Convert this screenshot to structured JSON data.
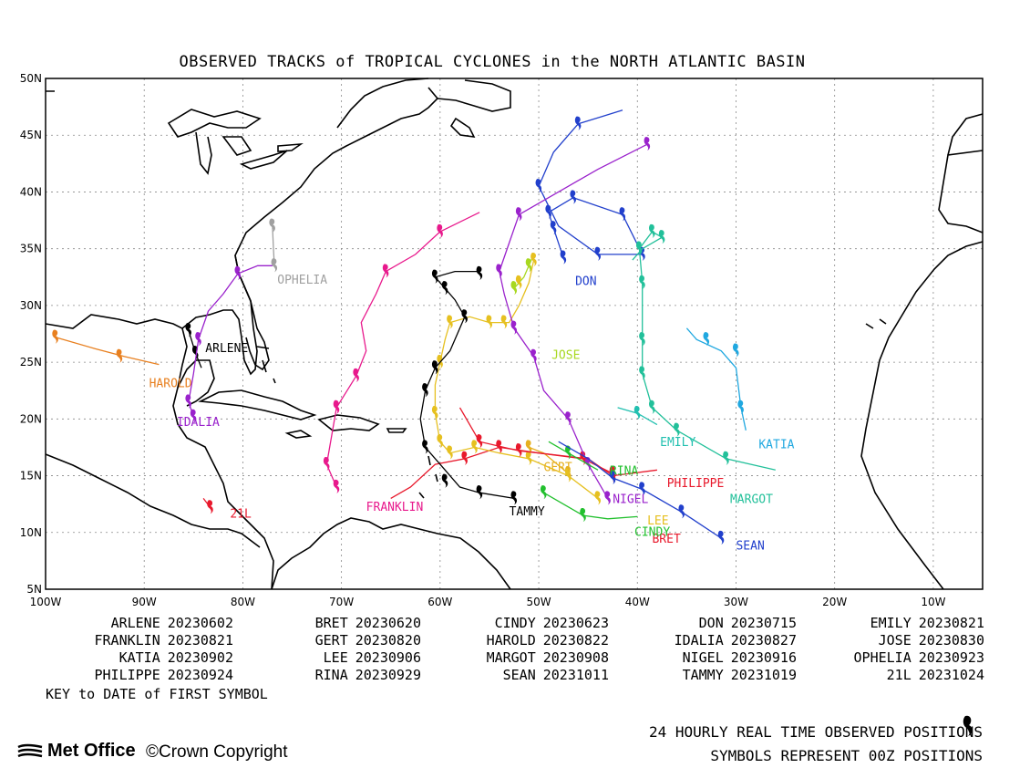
{
  "title": "OBSERVED TRACKS of TROPICAL CYCLONES in the NORTH ATLANTIC BASIN",
  "lat_labels": [
    "50N",
    "45N",
    "40N",
    "35N",
    "30N",
    "25N",
    "20N",
    "15N",
    "10N",
    "5N"
  ],
  "lon_labels": [
    "100W",
    "90W",
    "80W",
    "70W",
    "60W",
    "50W",
    "40W",
    "30W",
    "20W",
    "10W"
  ],
  "key": [
    [
      {
        "name": "ARLENE",
        "date": "20230602"
      },
      {
        "name": "BRET",
        "date": "20230620"
      },
      {
        "name": "CINDY",
        "date": "20230623"
      },
      {
        "name": "DON",
        "date": "20230715"
      },
      {
        "name": "EMILY",
        "date": "20230821"
      }
    ],
    [
      {
        "name": "FRANKLIN",
        "date": "20230821"
      },
      {
        "name": "GERT",
        "date": "20230820"
      },
      {
        "name": "HAROLD",
        "date": "20230822"
      },
      {
        "name": "IDALIA",
        "date": "20230827"
      },
      {
        "name": "JOSE",
        "date": "20230830"
      }
    ],
    [
      {
        "name": "KATIA",
        "date": "20230902"
      },
      {
        "name": "LEE",
        "date": "20230906"
      },
      {
        "name": "MARGOT",
        "date": "20230908"
      },
      {
        "name": "NIGEL",
        "date": "20230916"
      },
      {
        "name": "OPHELIA",
        "date": "20230923"
      }
    ],
    [
      {
        "name": "PHILIPPE",
        "date": "20230924"
      },
      {
        "name": "RINA",
        "date": "20230929"
      },
      {
        "name": "SEAN",
        "date": "20231011"
      },
      {
        "name": "TAMMY",
        "date": "20231019"
      },
      {
        "name": "21L",
        "date": "20231024"
      }
    ]
  ],
  "key_note": "KEY to DATE of FIRST SYMBOL",
  "legend_line1": "24 HOURLY REAL TIME OBSERVED POSITIONS",
  "legend_line2": "SYMBOLS REPRESENT 00Z POSITIONS",
  "logo_text": "Met Office",
  "copyright": "©Crown Copyright",
  "storms": [
    {
      "name": "ARLENE",
      "label": "ARLENE",
      "color": "#000000",
      "label_pos": [
        -83.8,
        25.9
      ],
      "track": [
        [
          -85.5,
          27.8
        ],
        [
          -84.8,
          25.8
        ],
        [
          -84.2,
          24.5
        ]
      ],
      "symbols": [
        [
          -85.5,
          27.8
        ],
        [
          -84.8,
          25.8
        ]
      ]
    },
    {
      "name": "BRET",
      "label": "BRET",
      "color": "#e8192c",
      "label_pos": [
        -38.5,
        9.1
      ],
      "track": [
        [
          -42.5,
          15.2
        ],
        [
          -45.5,
          16.5
        ],
        [
          -50,
          17
        ],
        [
          -54,
          17.5
        ],
        [
          -57.5,
          16.5
        ],
        [
          -60.5,
          16
        ],
        [
          -63,
          14
        ],
        [
          -65,
          13
        ]
      ],
      "symbols": [
        [
          -42.5,
          15.2
        ],
        [
          -45.5,
          16.5
        ],
        [
          -54,
          17.5
        ],
        [
          -57.5,
          16.5
        ]
      ]
    },
    {
      "name": "CINDY",
      "label": "CINDY",
      "color": "#22c02e",
      "label_pos": [
        -40.3,
        9.7
      ],
      "track": [
        [
          -49.5,
          13.5
        ],
        [
          -45.5,
          11.5
        ],
        [
          -43,
          11.2
        ],
        [
          -40,
          11.4
        ]
      ],
      "symbols": [
        [
          -49.5,
          13.5
        ],
        [
          -45.5,
          11.5
        ]
      ]
    },
    {
      "name": "DON",
      "label": "DON",
      "color": "#2240cc",
      "label_pos": [
        -46.3,
        31.8
      ],
      "track": [
        [
          -47.5,
          34.2
        ],
        [
          -48.5,
          36.8
        ],
        [
          -49,
          38.2
        ],
        [
          -46.5,
          39.5
        ],
        [
          -41.5,
          38
        ],
        [
          -39.5,
          34.5
        ],
        [
          -44,
          34.5
        ],
        [
          -48,
          37
        ],
        [
          -50,
          40.5
        ],
        [
          -48.5,
          43.5
        ],
        [
          -46,
          46
        ],
        [
          -41.5,
          47.2
        ]
      ],
      "symbols": [
        [
          -47.5,
          34.2
        ],
        [
          -48.5,
          36.8
        ],
        [
          -49,
          38.2
        ],
        [
          -46.5,
          39.5
        ],
        [
          -41.5,
          38
        ],
        [
          -39.5,
          34.5
        ],
        [
          -44,
          34.5
        ],
        [
          -50,
          40.5
        ],
        [
          -46,
          46
        ]
      ]
    },
    {
      "name": "EMILY",
      "label": "EMILY",
      "color": "#22c0b0",
      "label_pos": [
        -37.7,
        17.6
      ],
      "track": [
        [
          -42,
          21
        ],
        [
          -40,
          20.5
        ],
        [
          -38,
          19.5
        ]
      ],
      "symbols": [
        [
          -40,
          20.5
        ]
      ]
    },
    {
      "name": "FRANKLIN",
      "label": "FRANKLIN",
      "color": "#e8198c",
      "label_pos": [
        -67.5,
        11.9
      ],
      "track": [
        [
          -70.5,
          14
        ],
        [
          -71.5,
          16
        ],
        [
          -70.5,
          21
        ],
        [
          -68.5,
          23.8
        ],
        [
          -67.5,
          26
        ],
        [
          -68,
          28.5
        ],
        [
          -66.5,
          31
        ],
        [
          -65.5,
          33
        ],
        [
          -62.5,
          34.5
        ],
        [
          -60,
          36.5
        ],
        [
          -56,
          38.2
        ]
      ],
      "symbols": [
        [
          -70.5,
          14
        ],
        [
          -71.5,
          16
        ],
        [
          -70.5,
          21
        ],
        [
          -68.5,
          23.8
        ],
        [
          -65.5,
          33
        ],
        [
          -60,
          36.5
        ]
      ]
    },
    {
      "name": "GERT",
      "label": "GERT",
      "color": "#e6b020",
      "label_pos": [
        -49.5,
        15.4
      ],
      "track": [
        [
          -47,
          15.2
        ],
        [
          -49.5,
          17
        ],
        [
          -51,
          17.5
        ]
      ],
      "symbols": [
        [
          -47,
          15.2
        ],
        [
          -51,
          17.5
        ]
      ]
    },
    {
      "name": "HAROLD",
      "label": "HAROLD",
      "color": "#e88020",
      "label_pos": [
        -89.5,
        22.8
      ],
      "track": [
        [
          -88.5,
          24.8
        ],
        [
          -92,
          25.5
        ],
        [
          -95,
          26.2
        ],
        [
          -99,
          27.2
        ]
      ],
      "symbols": [
        [
          -92.5,
          25.5
        ],
        [
          -99,
          27.2
        ]
      ]
    },
    {
      "name": "IDALIA",
      "label": "IDALIA",
      "color": "#9a22cc",
      "label_pos": [
        -86.7,
        19.4
      ],
      "track": [
        [
          -85,
          20.2
        ],
        [
          -85.5,
          21.5
        ],
        [
          -85,
          24
        ],
        [
          -84.5,
          27
        ],
        [
          -83.5,
          29.5
        ],
        [
          -82,
          31
        ],
        [
          -80.5,
          32.8
        ],
        [
          -78.5,
          33.5
        ],
        [
          -77,
          33.5
        ]
      ],
      "symbols": [
        [
          -85,
          20.2
        ],
        [
          -85.5,
          21.5
        ],
        [
          -84.5,
          27
        ],
        [
          -80.5,
          32.8
        ]
      ]
    },
    {
      "name": "JOSE",
      "label": "JOSE",
      "color": "#a8d820",
      "label_pos": [
        -48.7,
        25.3
      ],
      "track": [
        [
          -52.5,
          31.5
        ],
        [
          -51.5,
          32.5
        ],
        [
          -51,
          33.5
        ],
        [
          -50.5,
          34.5
        ]
      ],
      "symbols": [
        [
          -52.5,
          31.5
        ],
        [
          -51,
          33.5
        ]
      ]
    },
    {
      "name": "KATIA",
      "label": "KATIA",
      "color": "#20a8e0",
      "label_pos": [
        -27.7,
        17.4
      ],
      "track": [
        [
          -29,
          19
        ],
        [
          -29.5,
          21
        ],
        [
          -30,
          24.5
        ],
        [
          -31.5,
          26
        ],
        [
          -34,
          27
        ],
        [
          -35,
          28
        ]
      ],
      "symbols": [
        [
          -29.5,
          21
        ],
        [
          -30,
          26
        ],
        [
          -33,
          27
        ]
      ]
    },
    {
      "name": "LEE",
      "label": "LEE",
      "color": "#e6c020",
      "label_pos": [
        -39,
        10.7
      ],
      "track": [
        [
          -44,
          13
        ],
        [
          -47,
          15
        ],
        [
          -51,
          16.5
        ],
        [
          -54,
          17
        ],
        [
          -56.5,
          17.5
        ],
        [
          -59,
          17
        ],
        [
          -60,
          18
        ],
        [
          -60.5,
          20.5
        ],
        [
          -60.5,
          23
        ],
        [
          -60,
          25
        ],
        [
          -59.5,
          27
        ],
        [
          -59,
          28.5
        ],
        [
          -57,
          29
        ],
        [
          -55,
          28.5
        ],
        [
          -53,
          28.5
        ],
        [
          -52,
          30
        ],
        [
          -51,
          32
        ],
        [
          -50.5,
          34
        ]
      ],
      "symbols": [
        [
          -44,
          13
        ],
        [
          -47,
          15
        ],
        [
          -51,
          16.5
        ],
        [
          -56.5,
          17.5
        ],
        [
          -59,
          17
        ],
        [
          -60,
          18
        ],
        [
          -60.5,
          20.5
        ],
        [
          -60,
          25
        ],
        [
          -59,
          28.5
        ],
        [
          -55,
          28.5
        ],
        [
          -53.5,
          28.5
        ],
        [
          -52,
          32
        ],
        [
          -50.5,
          34
        ]
      ]
    },
    {
      "name": "MARGOT",
      "label": "MARGOT",
      "color": "#22c09a",
      "label_pos": [
        -30.6,
        12.6
      ],
      "track": [
        [
          -26,
          15.5
        ],
        [
          -31,
          16.5
        ],
        [
          -36,
          19
        ],
        [
          -38.5,
          21
        ],
        [
          -39.5,
          24
        ],
        [
          -39.5,
          27
        ],
        [
          -39.5,
          32
        ],
        [
          -39.8,
          35
        ],
        [
          -38.5,
          36.5
        ],
        [
          -37.5,
          36
        ],
        [
          -39.5,
          35
        ],
        [
          -40.5,
          34
        ]
      ],
      "symbols": [
        [
          -31,
          16.5
        ],
        [
          -36,
          19
        ],
        [
          -38.5,
          21
        ],
        [
          -39.5,
          24
        ],
        [
          -39.5,
          27
        ],
        [
          -39.5,
          32
        ],
        [
          -39.8,
          35
        ],
        [
          -38.5,
          36.5
        ],
        [
          -37.5,
          36
        ]
      ]
    },
    {
      "name": "NIGEL",
      "label": "NIGEL",
      "color": "#9a22cc",
      "label_pos": [
        -42.5,
        12.6
      ],
      "track": [
        [
          -43,
          13
        ],
        [
          -45,
          16
        ],
        [
          -47,
          20
        ],
        [
          -49.5,
          22.5
        ],
        [
          -50.5,
          25.5
        ],
        [
          -52.5,
          28
        ],
        [
          -53.5,
          31
        ],
        [
          -54,
          33
        ],
        [
          -53,
          35.5
        ],
        [
          -52,
          38
        ],
        [
          -48,
          40
        ],
        [
          -44,
          42
        ],
        [
          -39,
          44.2
        ]
      ],
      "symbols": [
        [
          -43,
          13
        ],
        [
          -45,
          16
        ],
        [
          -47,
          20
        ],
        [
          -50.5,
          25.5
        ],
        [
          -52.5,
          28
        ],
        [
          -54,
          33
        ],
        [
          -52,
          38
        ],
        [
          -39,
          44.2
        ]
      ]
    },
    {
      "name": "OPHELIA",
      "label": "OPHELIA",
      "color": "#a0a0a0",
      "label_pos": [
        -76.5,
        31.9
      ],
      "track": [
        [
          -76.8,
          33.5
        ],
        [
          -76.9,
          35
        ],
        [
          -77,
          37
        ]
      ],
      "symbols": [
        [
          -76.8,
          33.5
        ],
        [
          -77,
          37
        ]
      ]
    },
    {
      "name": "PHILIPPE",
      "label": "PHILIPPE",
      "color": "#e8192c",
      "label_pos": [
        -37,
        14
      ],
      "track": [
        [
          -38,
          15.5
        ],
        [
          -42.5,
          15
        ],
        [
          -45,
          16.5
        ],
        [
          -52,
          17.2
        ],
        [
          -56,
          18
        ],
        [
          -58,
          21
        ]
      ],
      "symbols": [
        [
          -42.5,
          15
        ],
        [
          -52,
          17.2
        ],
        [
          -56,
          18
        ]
      ]
    },
    {
      "name": "RINA",
      "label": "RINA",
      "color": "#22c02e",
      "label_pos": [
        -42.8,
        15.1
      ],
      "track": [
        [
          -44,
          15.5
        ],
        [
          -47,
          17
        ],
        [
          -49,
          18
        ]
      ],
      "symbols": [
        [
          -47,
          17
        ]
      ]
    },
    {
      "name": "SEAN",
      "label": "SEAN",
      "color": "#2240cc",
      "label_pos": [
        -30,
        8.5
      ],
      "track": [
        [
          -31.5,
          9.5
        ],
        [
          -35.5,
          11.8
        ],
        [
          -39.5,
          13.8
        ],
        [
          -42.5,
          14.8
        ],
        [
          -45,
          16.5
        ],
        [
          -48,
          18
        ]
      ],
      "symbols": [
        [
          -31.5,
          9.5
        ],
        [
          -35.5,
          11.8
        ],
        [
          -39.5,
          13.8
        ],
        [
          -42.5,
          14.8
        ]
      ]
    },
    {
      "name": "TAMMY",
      "label": "TAMMY",
      "color": "#000000",
      "label_pos": [
        -53,
        11.5
      ],
      "track": [
        [
          -52.5,
          13
        ],
        [
          -56,
          13.5
        ],
        [
          -58,
          14
        ],
        [
          -59.5,
          15.5
        ],
        [
          -61.5,
          17.5
        ],
        [
          -62,
          20
        ],
        [
          -61.5,
          22.5
        ],
        [
          -60.5,
          24.5
        ],
        [
          -59,
          26
        ],
        [
          -58,
          28
        ],
        [
          -57.5,
          29
        ],
        [
          -58.5,
          30.5
        ],
        [
          -59.5,
          31.5
        ],
        [
          -60.5,
          32.5
        ],
        [
          -58.5,
          33
        ],
        [
          -56,
          33
        ]
      ],
      "symbols": [
        [
          -52.5,
          13
        ],
        [
          -56,
          13.5
        ],
        [
          -59.5,
          14.5
        ],
        [
          -61.5,
          17.5
        ],
        [
          -61.5,
          22.5
        ],
        [
          -60.5,
          24.5
        ],
        [
          -57.5,
          29
        ],
        [
          -59.5,
          31.5
        ],
        [
          -60.5,
          32.5
        ],
        [
          -56,
          32.8
        ]
      ]
    },
    {
      "name": "21L",
      "label": "21L",
      "color": "#e8192c",
      "label_pos": [
        -81.3,
        11.3
      ],
      "track": [
        [
          -84,
          13
        ],
        [
          -83.3,
          12.2
        ]
      ],
      "symbols": [
        [
          -83.3,
          12.2
        ]
      ]
    }
  ]
}
